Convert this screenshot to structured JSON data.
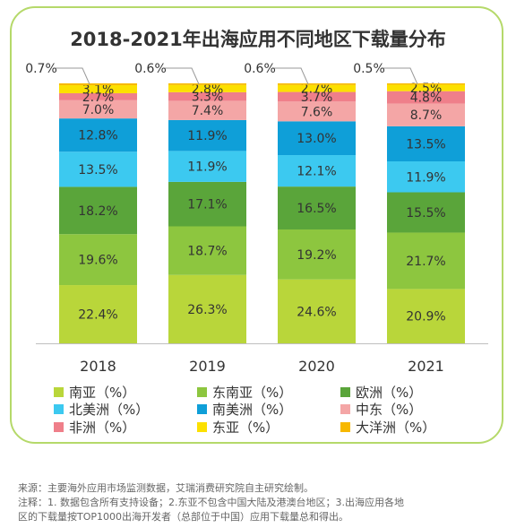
{
  "title": "2018-2021年出海应用不同地区下载量分布",
  "colors": {
    "frame": "#b5d96a",
    "dongnanya": "#8dc63f",
    "ouzhou": "#5aa53a",
    "beimeizhou": "#3cc9f0",
    "nanmeizhou": "#0f9fd8",
    "zhongdong": "#f4a6a6",
    "feizhou": "#ef7f8a",
    "dongya": "#fce000",
    "dayangzhou": "#f7b800",
    "nanya": "#b9d63a"
  },
  "chart_data": {
    "type": "bar",
    "stacked": true,
    "categories": [
      "2018",
      "2019",
      "2020",
      "2021"
    ],
    "ylim": [
      0,
      100
    ],
    "series": [
      {
        "name": "南亚（%）",
        "color": "#b9d63a",
        "values": [
          22.4,
          26.3,
          24.6,
          20.9
        ],
        "labels": [
          "22.4%",
          "26.3%",
          "24.6%",
          "20.9%"
        ]
      },
      {
        "name": "东南亚（%）",
        "color": "#8dc63f",
        "values": [
          19.6,
          18.7,
          19.2,
          21.7
        ],
        "labels": [
          "19.6%",
          "18.7%",
          "19.2%",
          "21.7%"
        ]
      },
      {
        "name": "欧洲（%）",
        "color": "#5aa53a",
        "values": [
          18.2,
          17.1,
          16.5,
          15.5
        ],
        "labels": [
          "18.2%",
          "17.1%",
          "16.5%",
          "15.5%"
        ]
      },
      {
        "name": "北美洲（%）",
        "color": "#3cc9f0",
        "values": [
          13.5,
          11.9,
          12.1,
          11.9
        ],
        "labels": [
          "13.5%",
          "11.9%",
          "12.1%",
          "11.9%"
        ]
      },
      {
        "name": "南美洲（%）",
        "color": "#0f9fd8",
        "values": [
          12.8,
          11.9,
          13.0,
          13.5
        ],
        "labels": [
          "12.8%",
          "11.9%",
          "13.0%",
          "13.5%"
        ]
      },
      {
        "name": "中东（%）",
        "color": "#f4a6a6",
        "values": [
          7.0,
          7.4,
          7.6,
          8.7
        ],
        "labels": [
          "7.0%",
          "7.4%",
          "7.6%",
          "8.7%"
        ]
      },
      {
        "name": "非洲（%）",
        "color": "#ef7f8a",
        "values": [
          2.7,
          3.3,
          3.7,
          4.8
        ],
        "labels": [
          "2.7%",
          "3.3%",
          "3.7%",
          "4.8%"
        ]
      },
      {
        "name": "东亚（%）",
        "color": "#fce000",
        "values": [
          3.1,
          2.8,
          2.7,
          2.5
        ],
        "labels": [
          "3.1%",
          "2.8%",
          "2.7%",
          "2.5%"
        ]
      },
      {
        "name": "大洋洲（%）",
        "color": "#f7b800",
        "values": [
          0.7,
          0.6,
          0.6,
          0.5
        ],
        "labels": [
          "0.7%",
          "0.6%",
          "0.6%",
          "0.5%"
        ]
      }
    ],
    "legend": [
      [
        "南亚（%）",
        "东南亚（%）",
        "欧洲（%）"
      ],
      [
        "北美洲（%）",
        "南美洲（%）",
        "中东（%）"
      ],
      [
        "非洲（%）",
        "东亚（%）",
        "大洋洲（%）"
      ]
    ]
  },
  "notes": {
    "source": "来源：主要海外应用市场监测数据，艾瑞消费研究院自主研究绘制。",
    "line2": "注释：1. 数据包含所有支持设备；2.东亚不包含中国大陆及港澳台地区；3.出海应用各地",
    "line3": "区的下载量按TOP1000出海开发者（总部位于中国）应用下载量总和得出。"
  }
}
